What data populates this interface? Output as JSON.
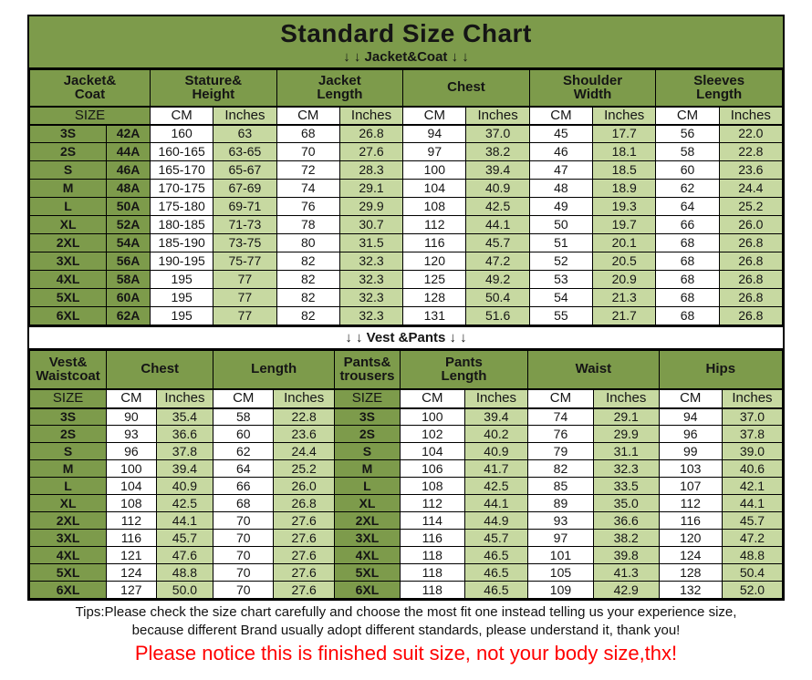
{
  "page": {
    "title": "Standard Size Chart"
  },
  "colors": {
    "olive": "#7d9b4b",
    "light_green": "#c7d9a1",
    "notice_red": "#ff0000",
    "border": "#000000"
  },
  "jacket_table": {
    "subtitle": "↓ ↓  Jacket&Coat ↓ ↓",
    "headers": [
      {
        "lines": [
          "Jacket&",
          "Coat"
        ],
        "span": 2
      },
      {
        "lines": [
          "Stature&",
          "Height"
        ],
        "span": 2
      },
      {
        "lines": [
          "Jacket",
          "Length"
        ],
        "span": 2
      },
      {
        "lines": [
          "Chest"
        ],
        "span": 2
      },
      {
        "lines": [
          "Shoulder",
          "Width"
        ],
        "span": 2
      },
      {
        "lines": [
          "Sleeves",
          "Length"
        ],
        "span": 2
      }
    ],
    "size_label": "SIZE",
    "unit_row": [
      "CM",
      "Inches",
      "CM",
      "Inches",
      "CM",
      "Inches",
      "CM",
      "Inches",
      "CM",
      "Inches"
    ],
    "rows": [
      {
        "size": "3S",
        "code": "42A",
        "values": [
          "160",
          "63",
          "68",
          "26.8",
          "94",
          "37.0",
          "45",
          "17.7",
          "56",
          "22.0"
        ]
      },
      {
        "size": "2S",
        "code": "44A",
        "values": [
          "160-165",
          "63-65",
          "70",
          "27.6",
          "97",
          "38.2",
          "46",
          "18.1",
          "58",
          "22.8"
        ]
      },
      {
        "size": "S",
        "code": "46A",
        "values": [
          "165-170",
          "65-67",
          "72",
          "28.3",
          "100",
          "39.4",
          "47",
          "18.5",
          "60",
          "23.6"
        ]
      },
      {
        "size": "M",
        "code": "48A",
        "values": [
          "170-175",
          "67-69",
          "74",
          "29.1",
          "104",
          "40.9",
          "48",
          "18.9",
          "62",
          "24.4"
        ]
      },
      {
        "size": "L",
        "code": "50A",
        "values": [
          "175-180",
          "69-71",
          "76",
          "29.9",
          "108",
          "42.5",
          "49",
          "19.3",
          "64",
          "25.2"
        ]
      },
      {
        "size": "XL",
        "code": "52A",
        "values": [
          "180-185",
          "71-73",
          "78",
          "30.7",
          "112",
          "44.1",
          "50",
          "19.7",
          "66",
          "26.0"
        ]
      },
      {
        "size": "2XL",
        "code": "54A",
        "values": [
          "185-190",
          "73-75",
          "80",
          "31.5",
          "116",
          "45.7",
          "51",
          "20.1",
          "68",
          "26.8"
        ]
      },
      {
        "size": "3XL",
        "code": "56A",
        "values": [
          "190-195",
          "75-77",
          "82",
          "32.3",
          "120",
          "47.2",
          "52",
          "20.5",
          "68",
          "26.8"
        ]
      },
      {
        "size": "4XL",
        "code": "58A",
        "values": [
          "195",
          "77",
          "82",
          "32.3",
          "125",
          "49.2",
          "53",
          "20.9",
          "68",
          "26.8"
        ]
      },
      {
        "size": "5XL",
        "code": "60A",
        "values": [
          "195",
          "77",
          "82",
          "32.3",
          "128",
          "50.4",
          "54",
          "21.3",
          "68",
          "26.8"
        ]
      },
      {
        "size": "6XL",
        "code": "62A",
        "values": [
          "195",
          "77",
          "82",
          "32.3",
          "131",
          "51.6",
          "55",
          "21.7",
          "68",
          "26.8"
        ]
      }
    ]
  },
  "vest_table": {
    "band": "↓ ↓  Vest &Pants ↓ ↓",
    "headers": [
      {
        "lines": [
          "Vest&",
          "Waistcoat"
        ],
        "span": 1
      },
      {
        "lines": [
          "Chest"
        ],
        "span": 2
      },
      {
        "lines": [
          "Length"
        ],
        "span": 2
      },
      {
        "lines": [
          "Pants&",
          "trousers"
        ],
        "span": 1
      },
      {
        "lines": [
          "Pants",
          "Length"
        ],
        "span": 2
      },
      {
        "lines": [
          "Waist"
        ],
        "span": 2
      },
      {
        "lines": [
          "Hips"
        ],
        "span": 2
      }
    ],
    "size_label": "SIZE",
    "pants_size_label": "SIZE",
    "unit_row_vest": [
      "CM",
      "Inches",
      "CM",
      "Inches"
    ],
    "unit_row_pants": [
      "CM",
      "Inches",
      "CM",
      "Inches",
      "CM",
      "Inches"
    ],
    "rows": [
      {
        "vest_size": "3S",
        "vest_values": [
          "90",
          "35.4",
          "58",
          "22.8"
        ],
        "pants_size": "3S",
        "pants_values": [
          "100",
          "39.4",
          "74",
          "29.1",
          "94",
          "37.0"
        ]
      },
      {
        "vest_size": "2S",
        "vest_values": [
          "93",
          "36.6",
          "60",
          "23.6"
        ],
        "pants_size": "2S",
        "pants_values": [
          "102",
          "40.2",
          "76",
          "29.9",
          "96",
          "37.8"
        ]
      },
      {
        "vest_size": "S",
        "vest_values": [
          "96",
          "37.8",
          "62",
          "24.4"
        ],
        "pants_size": "S",
        "pants_values": [
          "104",
          "40.9",
          "79",
          "31.1",
          "99",
          "39.0"
        ]
      },
      {
        "vest_size": "M",
        "vest_values": [
          "100",
          "39.4",
          "64",
          "25.2"
        ],
        "pants_size": "M",
        "pants_values": [
          "106",
          "41.7",
          "82",
          "32.3",
          "103",
          "40.6"
        ]
      },
      {
        "vest_size": "L",
        "vest_values": [
          "104",
          "40.9",
          "66",
          "26.0"
        ],
        "pants_size": "L",
        "pants_values": [
          "108",
          "42.5",
          "85",
          "33.5",
          "107",
          "42.1"
        ]
      },
      {
        "vest_size": "XL",
        "vest_values": [
          "108",
          "42.5",
          "68",
          "26.8"
        ],
        "pants_size": "XL",
        "pants_values": [
          "112",
          "44.1",
          "89",
          "35.0",
          "112",
          "44.1"
        ]
      },
      {
        "vest_size": "2XL",
        "vest_values": [
          "112",
          "44.1",
          "70",
          "27.6"
        ],
        "pants_size": "2XL",
        "pants_values": [
          "114",
          "44.9",
          "93",
          "36.6",
          "116",
          "45.7"
        ]
      },
      {
        "vest_size": "3XL",
        "vest_values": [
          "116",
          "45.7",
          "70",
          "27.6"
        ],
        "pants_size": "3XL",
        "pants_values": [
          "116",
          "45.7",
          "97",
          "38.2",
          "120",
          "47.2"
        ]
      },
      {
        "vest_size": "4XL",
        "vest_values": [
          "121",
          "47.6",
          "70",
          "27.6"
        ],
        "pants_size": "4XL",
        "pants_values": [
          "118",
          "46.5",
          "101",
          "39.8",
          "124",
          "48.8"
        ]
      },
      {
        "vest_size": "5XL",
        "vest_values": [
          "124",
          "48.8",
          "70",
          "27.6"
        ],
        "pants_size": "5XL",
        "pants_values": [
          "118",
          "46.5",
          "105",
          "41.3",
          "128",
          "50.4"
        ]
      },
      {
        "vest_size": "6XL",
        "vest_values": [
          "127",
          "50.0",
          "70",
          "27.6"
        ],
        "pants_size": "6XL",
        "pants_values": [
          "118",
          "46.5",
          "109",
          "42.9",
          "132",
          "52.0"
        ]
      }
    ]
  },
  "footer": {
    "tips_line1": "Tips:Please check the size chart carefully and choose the most fit one instead telling us your experience size,",
    "tips_line2": "because different Brand usually adopt different standards, please understand it, thank you!",
    "notice": "Please notice this is finished suit size, not your body size,thx!"
  }
}
